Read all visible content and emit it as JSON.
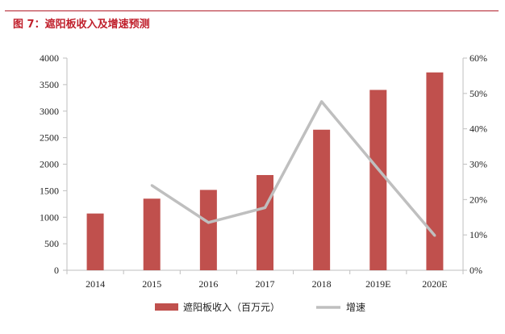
{
  "figure": {
    "title": "图 7：遮阳板收入及增速预测"
  },
  "colors": {
    "bar": "#c0504d",
    "line": "#bfbfbf",
    "axis": "#bfbfbf",
    "title": "#c0202c"
  },
  "chart_data": {
    "type": "bar",
    "categories": [
      "2014",
      "2015",
      "2016",
      "2017",
      "2018",
      "2019E",
      "2020E"
    ],
    "series": [
      {
        "name": "遮阳板收入（百万元）",
        "type": "bar",
        "axis": "left",
        "values": [
          1070,
          1350,
          1515,
          1795,
          2650,
          3400,
          3730
        ]
      },
      {
        "name": "增速",
        "type": "line",
        "axis": "right",
        "values": [
          null,
          0.24,
          0.135,
          0.177,
          0.477,
          0.286,
          0.098
        ]
      }
    ],
    "yleft": {
      "min": 0,
      "max": 4000,
      "ticks": [
        0,
        500,
        1000,
        1500,
        2000,
        2500,
        3000,
        3500,
        4000
      ]
    },
    "yright": {
      "min": 0,
      "max": 0.6,
      "ticks": [
        0,
        0.1,
        0.2,
        0.3,
        0.4,
        0.5,
        0.6
      ],
      "tick_labels": [
        "0%",
        "10%",
        "20%",
        "30%",
        "40%",
        "50%",
        "60%"
      ]
    },
    "grid": false,
    "legend": "bottom"
  }
}
